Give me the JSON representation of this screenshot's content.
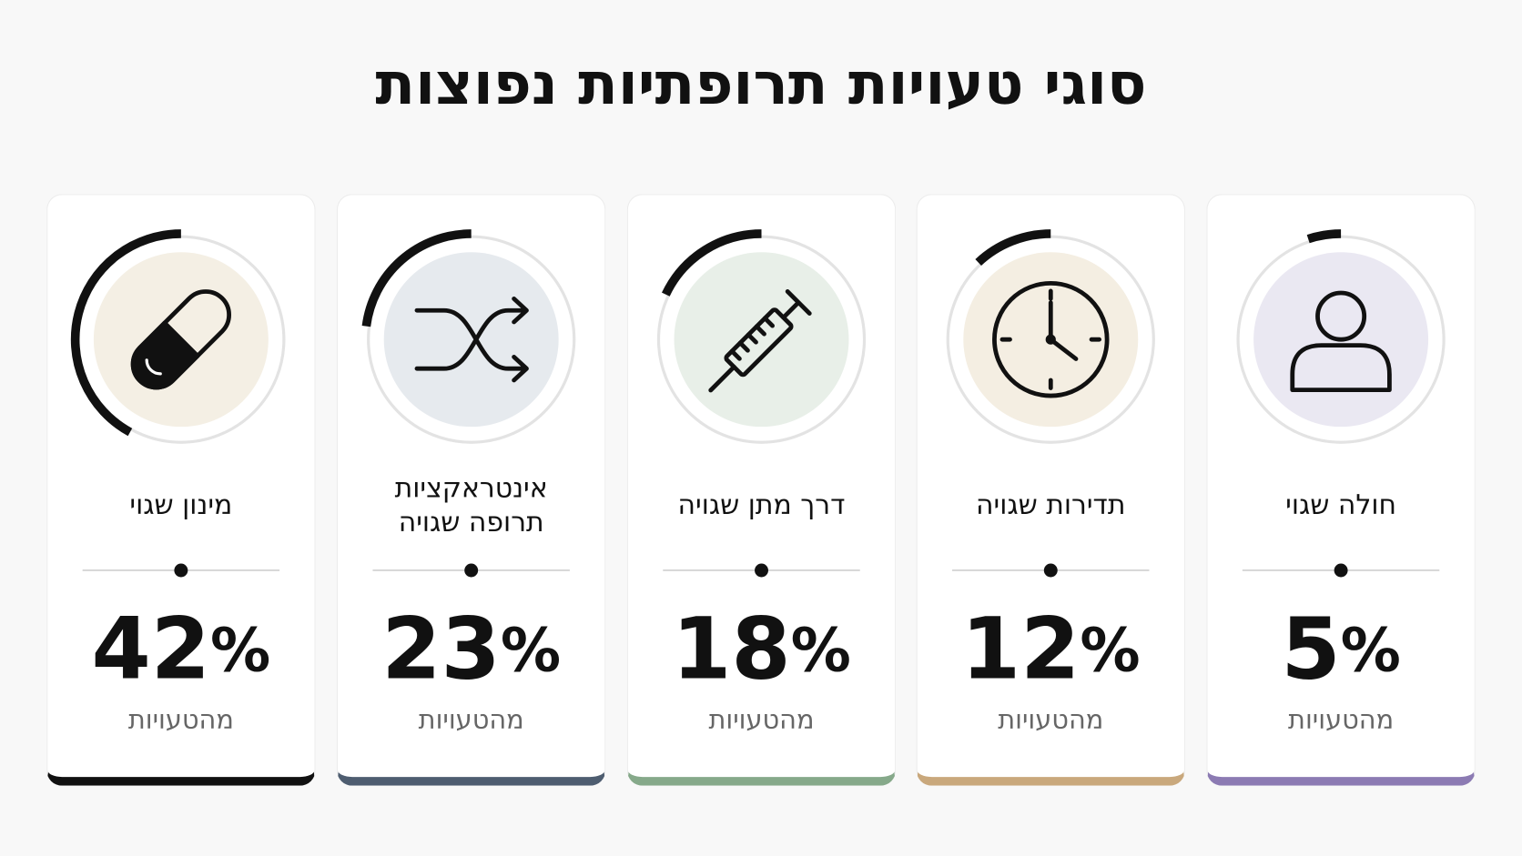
{
  "title": "סוגי טעויות תרופתיות נפוצות",
  "cards": [
    {
      "label": [
        "חולה שגוי"
      ],
      "value": 5,
      "unit": "%",
      "caption": "מהטעויות",
      "color": "#8c7bb3",
      "tint": "#eae8f2",
      "icon": "person"
    },
    {
      "label": [
        "תדירות שגויה"
      ],
      "value": 12,
      "unit": "%",
      "caption": "מהטעויות",
      "color": "#c9a87c",
      "tint": "#f4eee2",
      "icon": "clock"
    },
    {
      "label": [
        "דרך מתן שגויה"
      ],
      "value": 18,
      "unit": "%",
      "caption": "מהטעויות",
      "color": "#86a98a",
      "tint": "#e8efe8",
      "icon": "syringe"
    },
    {
      "label": [
        "אינטראקציות",
        "תרופה שגויה"
      ],
      "value": 23,
      "unit": "%",
      "caption": "מהטעויות",
      "color": "#4e5d70",
      "tint": "#e6eaee",
      "icon": "shuffle"
    },
    {
      "label": [
        "מינון שגוי"
      ],
      "value": 42,
      "unit": "%",
      "caption": "מהטעויות",
      "color": "#111111",
      "tint": "#f4efe4",
      "icon": "pill"
    }
  ]
}
